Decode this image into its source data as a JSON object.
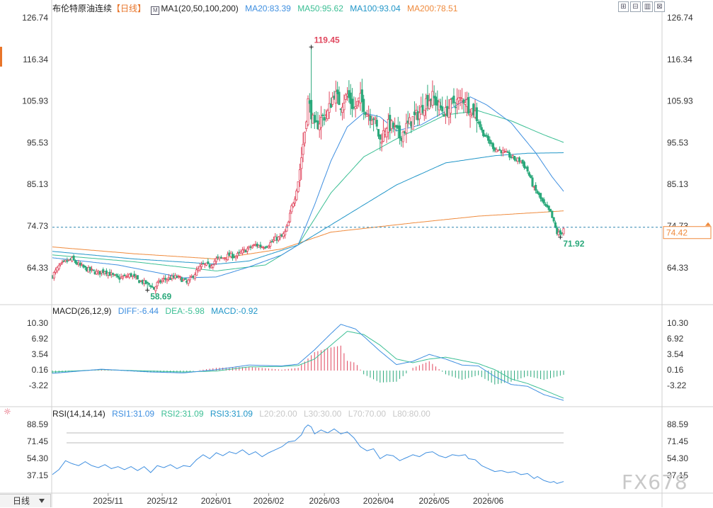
{
  "header": {
    "name": "布伦特原油连续",
    "period_tag": "【日线】",
    "ma_label": "MA1(20,50,100,200)",
    "ma20": "MA20:83.39",
    "ma50": "MA50:95.62",
    "ma100": "MA100:93.04",
    "ma200": "MA200:78.51"
  },
  "toolbar": {
    "icons": [
      "zoom-in-icon",
      "zoom-out-icon",
      "bar-chart-icon",
      "close-icon"
    ],
    "glyphs": [
      "⊞",
      "⊟",
      "▥",
      "⊠"
    ]
  },
  "macd_legend": {
    "title": "MACD(26,12,9)",
    "diff": "DIFF:-6.44",
    "dea": "DEA:-5.98",
    "macd": "MACD:-0.92"
  },
  "rsi_legend": {
    "title": "RSI(14,14,14)",
    "rsi1": "RSI1:31.09",
    "rsi2": "RSI2:31.09",
    "rsi3": "RSI3:31.09",
    "l20": "L20:20.00",
    "l30": "L30:30.00",
    "l70": "L70:70.00",
    "l80": "L80:80.00"
  },
  "period_button": "日线",
  "watermark": "FX678",
  "colors": {
    "up": "#e0475e",
    "down": "#2aa87a",
    "ma20": "#3f8fe0",
    "ma50": "#3cbf94",
    "ma100": "#2196c8",
    "ma200": "#ef8a3c",
    "price_line": "#2f86b0"
  },
  "chart_data": [
    {
      "type": "candlestick",
      "title": "布伦特原油连续",
      "ylim": [
        56.5,
        128
      ],
      "yticks": [
        "126.74",
        "116.34",
        "105.93",
        "95.53",
        "85.13",
        "74.73",
        "64.33"
      ],
      "y_right_ticks": [
        "126.74",
        "116.34",
        "105.93",
        "95.53",
        "85.13",
        "74.73",
        "64.33"
      ],
      "x_ticks": [
        "2025/11",
        "2025/12",
        "2026/01",
        "2026/02",
        "2026/03",
        "2026/04",
        "2026/05",
        "2026/06"
      ],
      "current_price": "74.42",
      "current_price_value": 74.42,
      "annotations": [
        {
          "label": "119.45",
          "value": 119.45
        },
        {
          "label": "58.69",
          "value": 58.69
        },
        {
          "label": "71.92",
          "value": 71.92
        }
      ],
      "waypoints": [
        [
          0,
          62.3
        ],
        [
          4,
          64.6
        ],
        [
          8,
          65.8
        ],
        [
          12,
          66.4
        ],
        [
          16,
          65.0
        ],
        [
          20,
          64.1
        ],
        [
          24,
          63.5
        ],
        [
          28,
          63.0
        ],
        [
          32,
          63.6
        ],
        [
          36,
          62.5
        ],
        [
          40,
          61.7
        ],
        [
          44,
          62.0
        ],
        [
          48,
          62.5
        ],
        [
          52,
          61.2
        ],
        [
          56,
          60.6
        ],
        [
          60,
          60.0
        ],
        [
          62,
          59.0
        ],
        [
          64,
          60.3
        ],
        [
          68,
          61.4
        ],
        [
          72,
          61.7
        ],
        [
          76,
          62.0
        ],
        [
          80,
          61.2
        ],
        [
          82,
          60.5
        ],
        [
          84,
          61.4
        ],
        [
          88,
          63.4
        ],
        [
          92,
          65.1
        ],
        [
          96,
          64.8
        ],
        [
          100,
          66.4
        ],
        [
          104,
          66.8
        ],
        [
          108,
          67.4
        ],
        [
          112,
          67.2
        ],
        [
          116,
          68.3
        ],
        [
          120,
          69.2
        ],
        [
          124,
          70.0
        ],
        [
          128,
          69.6
        ],
        [
          132,
          70.1
        ],
        [
          136,
          71.5
        ],
        [
          140,
          72.0
        ],
        [
          142,
          73.1
        ],
        [
          144,
          75.5
        ],
        [
          146,
          79.5
        ],
        [
          148,
          82.0
        ],
        [
          150,
          86.0
        ],
        [
          152,
          92.0
        ],
        [
          154,
          98.5
        ],
        [
          156,
          106.0
        ],
        [
          158,
          103.0
        ],
        [
          160,
          99.0
        ],
        [
          164,
          101.5
        ],
        [
          168,
          103.0
        ],
        [
          172,
          108.0
        ],
        [
          176,
          105.0
        ],
        [
          180,
          107.5
        ],
        [
          184,
          104.0
        ],
        [
          188,
          106.5
        ],
        [
          192,
          103.0
        ],
        [
          196,
          102.0
        ],
        [
          200,
          96.0
        ],
        [
          204,
          100.0
        ],
        [
          208,
          99.5
        ],
        [
          212,
          97.0
        ],
        [
          216,
          99.5
        ],
        [
          220,
          101.5
        ],
        [
          224,
          103.0
        ],
        [
          228,
          106.0
        ],
        [
          232,
          107.0
        ],
        [
          236,
          104.5
        ],
        [
          240,
          103.0
        ],
        [
          244,
          105.5
        ],
        [
          248,
          106.0
        ],
        [
          252,
          106.5
        ],
        [
          254,
          104.5
        ],
        [
          258,
          103.0
        ],
        [
          262,
          98.5
        ],
        [
          266,
          96.0
        ],
        [
          270,
          94.0
        ],
        [
          274,
          93.5
        ],
        [
          278,
          92.5
        ],
        [
          282,
          91.5
        ],
        [
          286,
          91.0
        ],
        [
          290,
          88.5
        ],
        [
          294,
          84.0
        ],
        [
          296,
          83.0
        ],
        [
          300,
          80.0
        ],
        [
          304,
          78.0
        ],
        [
          306,
          75.5
        ],
        [
          308,
          73.0
        ],
        [
          310,
          72.7
        ],
        [
          312,
          74.2
        ]
      ],
      "extremes": [
        [
          58,
          58.69
        ],
        [
          158,
          119.45
        ],
        [
          310,
          71.92
        ]
      ],
      "ma200": [
        [
          0,
          69.5
        ],
        [
          50,
          67.8
        ],
        [
          100,
          66.5
        ],
        [
          140,
          69.0
        ],
        [
          170,
          73.2
        ],
        [
          220,
          75.5
        ],
        [
          260,
          77.2
        ],
        [
          300,
          78.2
        ],
        [
          312,
          78.51
        ]
      ],
      "ma100": [
        [
          0,
          68.4
        ],
        [
          50,
          66.5
        ],
        [
          100,
          65.2
        ],
        [
          120,
          66.0
        ],
        [
          150,
          70.0
        ],
        [
          180,
          77.5
        ],
        [
          210,
          85.0
        ],
        [
          240,
          90.5
        ],
        [
          270,
          92.3
        ],
        [
          290,
          92.9
        ],
        [
          312,
          93.04
        ]
      ],
      "ma50": [
        [
          0,
          67.5
        ],
        [
          50,
          65.8
        ],
        [
          100,
          63.5
        ],
        [
          130,
          65.0
        ],
        [
          150,
          70.0
        ],
        [
          170,
          83.0
        ],
        [
          190,
          92.0
        ],
        [
          210,
          96.5
        ],
        [
          240,
          102.5
        ],
        [
          260,
          103.5
        ],
        [
          280,
          101.0
        ],
        [
          300,
          97.5
        ],
        [
          312,
          95.62
        ]
      ],
      "ma20": [
        [
          0,
          66.8
        ],
        [
          40,
          65.0
        ],
        [
          80,
          61.8
        ],
        [
          100,
          62.0
        ],
        [
          120,
          64.5
        ],
        [
          140,
          67.5
        ],
        [
          150,
          70.0
        ],
        [
          160,
          80.0
        ],
        [
          170,
          91.0
        ],
        [
          180,
          99.5
        ],
        [
          190,
          103.0
        ],
        [
          200,
          102.0
        ],
        [
          210,
          98.5
        ],
        [
          225,
          100.0
        ],
        [
          245,
          104.5
        ],
        [
          255,
          107.0
        ],
        [
          265,
          105.0
        ],
        [
          280,
          100.5
        ],
        [
          295,
          93.0
        ],
        [
          305,
          87.0
        ],
        [
          312,
          83.39
        ]
      ]
    },
    {
      "type": "macd",
      "title": "MACD(26,12,9)",
      "ylim": [
        -7.5,
        11.5
      ],
      "yticks": [
        "10.30",
        "6.92",
        "3.54",
        "0.16",
        "-3.22"
      ],
      "diff": [
        [
          0,
          -0.6
        ],
        [
          30,
          0.3
        ],
        [
          60,
          -0.3
        ],
        [
          80,
          -0.5
        ],
        [
          100,
          0.2
        ],
        [
          120,
          1.2
        ],
        [
          140,
          1.0
        ],
        [
          150,
          1.4
        ],
        [
          160,
          4.5
        ],
        [
          170,
          8.0
        ],
        [
          176,
          10.0
        ],
        [
          185,
          9.0
        ],
        [
          200,
          4.2
        ],
        [
          210,
          1.3
        ],
        [
          220,
          2.0
        ],
        [
          230,
          3.5
        ],
        [
          240,
          2.5
        ],
        [
          250,
          1.2
        ],
        [
          260,
          1.0
        ],
        [
          270,
          -1.3
        ],
        [
          280,
          -3.0
        ],
        [
          290,
          -3.4
        ],
        [
          300,
          -5.2
        ],
        [
          312,
          -6.44
        ]
      ],
      "dea": [
        [
          0,
          -0.3
        ],
        [
          30,
          0.2
        ],
        [
          60,
          -0.1
        ],
        [
          80,
          -0.3
        ],
        [
          100,
          -0.1
        ],
        [
          120,
          0.8
        ],
        [
          140,
          0.9
        ],
        [
          150,
          1.1
        ],
        [
          160,
          2.5
        ],
        [
          170,
          5.5
        ],
        [
          180,
          8.5
        ],
        [
          190,
          7.8
        ],
        [
          200,
          5.5
        ],
        [
          210,
          2.5
        ],
        [
          220,
          1.7
        ],
        [
          230,
          2.5
        ],
        [
          240,
          2.9
        ],
        [
          250,
          2.2
        ],
        [
          260,
          1.5
        ],
        [
          270,
          0.2
        ],
        [
          280,
          -1.8
        ],
        [
          290,
          -2.8
        ],
        [
          300,
          -4.2
        ],
        [
          312,
          -5.98
        ]
      ],
      "histogram_note": "MACD bars = 2*(DIFF-DEA)"
    },
    {
      "type": "line",
      "title": "RSI(14,14,14)",
      "ylim": [
        25,
        95
      ],
      "yticks": [
        "88.59",
        "71.45",
        "54.30",
        "37.15"
      ],
      "levels": [
        20,
        30,
        70,
        80
      ],
      "rsi": [
        [
          0,
          38
        ],
        [
          4,
          43
        ],
        [
          8,
          52
        ],
        [
          12,
          49
        ],
        [
          16,
          47
        ],
        [
          20,
          51
        ],
        [
          24,
          47
        ],
        [
          28,
          45
        ],
        [
          32,
          48
        ],
        [
          36,
          44
        ],
        [
          40,
          46
        ],
        [
          44,
          43
        ],
        [
          48,
          46
        ],
        [
          52,
          42
        ],
        [
          56,
          46
        ],
        [
          60,
          40
        ],
        [
          64,
          47
        ],
        [
          68,
          45
        ],
        [
          72,
          48
        ],
        [
          76,
          44
        ],
        [
          80,
          47
        ],
        [
          84,
          46
        ],
        [
          88,
          53
        ],
        [
          92,
          58
        ],
        [
          96,
          54
        ],
        [
          100,
          60
        ],
        [
          104,
          57
        ],
        [
          108,
          61
        ],
        [
          112,
          59
        ],
        [
          116,
          63
        ],
        [
          120,
          58
        ],
        [
          124,
          61
        ],
        [
          128,
          56
        ],
        [
          132,
          60
        ],
        [
          136,
          63
        ],
        [
          140,
          66
        ],
        [
          144,
          71
        ],
        [
          148,
          72
        ],
        [
          152,
          78
        ],
        [
          154,
          85
        ],
        [
          156,
          88
        ],
        [
          158,
          86
        ],
        [
          160,
          79
        ],
        [
          164,
          83
        ],
        [
          168,
          80
        ],
        [
          172,
          84
        ],
        [
          176,
          79
        ],
        [
          180,
          81
        ],
        [
          184,
          75
        ],
        [
          188,
          66
        ],
        [
          192,
          62
        ],
        [
          196,
          64
        ],
        [
          200,
          54
        ],
        [
          204,
          58
        ],
        [
          208,
          57
        ],
        [
          212,
          52
        ],
        [
          216,
          55
        ],
        [
          220,
          58
        ],
        [
          224,
          56
        ],
        [
          228,
          60
        ],
        [
          232,
          61
        ],
        [
          236,
          57
        ],
        [
          240,
          55
        ],
        [
          244,
          58
        ],
        [
          248,
          57
        ],
        [
          252,
          58
        ],
        [
          254,
          54
        ],
        [
          258,
          53
        ],
        [
          262,
          47
        ],
        [
          266,
          44
        ],
        [
          270,
          41
        ],
        [
          274,
          42
        ],
        [
          278,
          40
        ],
        [
          282,
          41
        ],
        [
          286,
          38
        ],
        [
          290,
          39
        ],
        [
          294,
          34
        ],
        [
          296,
          36
        ],
        [
          300,
          32
        ],
        [
          304,
          30
        ],
        [
          306,
          31
        ],
        [
          308,
          29
        ],
        [
          310,
          30
        ],
        [
          312,
          31
        ]
      ]
    }
  ]
}
